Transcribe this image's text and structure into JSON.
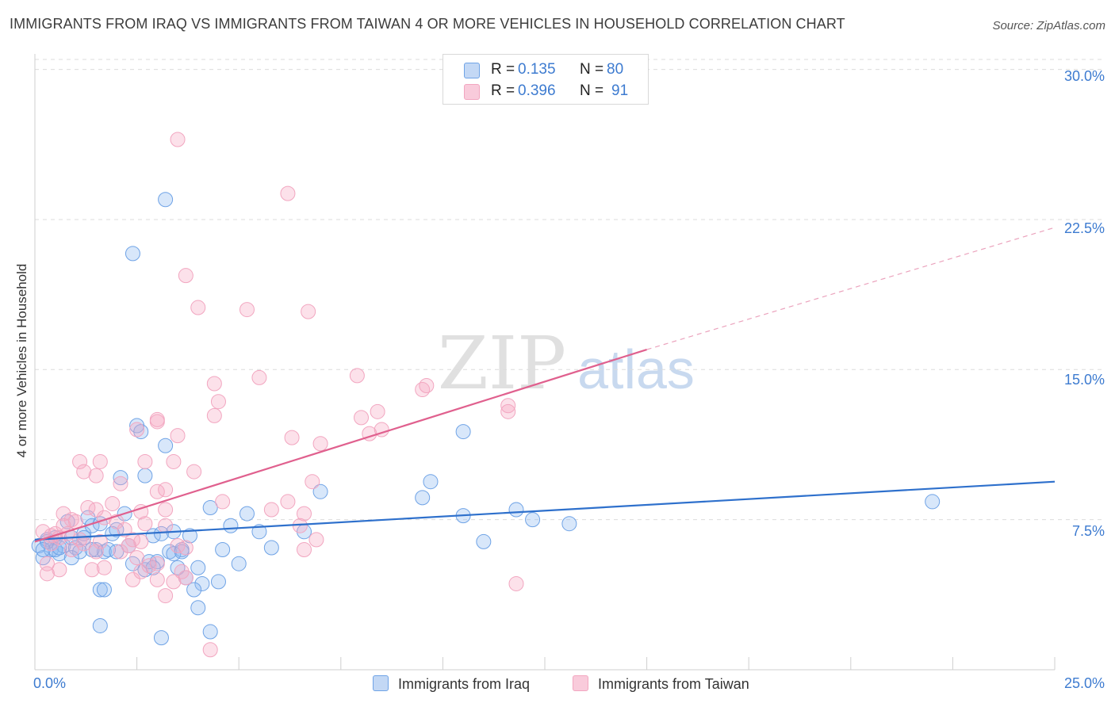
{
  "title": "IMMIGRANTS FROM IRAQ VS IMMIGRANTS FROM TAIWAN 4 OR MORE VEHICLES IN HOUSEHOLD CORRELATION CHART",
  "source": "Source: ZipAtlas.com",
  "watermark": {
    "zip": "ZIP",
    "atlas": "atlas"
  },
  "legend": {
    "r_label": "R =",
    "n_label": "N =",
    "iraq": {
      "r": "0.135",
      "n": "80"
    },
    "taiwan": {
      "r": "0.396",
      "n": "91"
    }
  },
  "colors": {
    "iraq": "#6fa3e6",
    "iraq_line": "#2e70cc",
    "taiwan": "#f2a6c0",
    "taiwan_line": "#e0608e",
    "axis_text": "#3d7bd0"
  },
  "chart_data": {
    "type": "scatter",
    "title": "IMMIGRANTS FROM IRAQ VS IMMIGRANTS FROM TAIWAN 4 OR MORE VEHICLES IN HOUSEHOLD CORRELATION CHART",
    "xlabel": "",
    "ylabel": "4 or more Vehicles in Household",
    "xlim": [
      0,
      25
    ],
    "ylim": [
      0,
      30.5
    ],
    "x_tick_labels": [
      "0.0%",
      "25.0%"
    ],
    "y_ticks": [
      7.5,
      15.0,
      22.5,
      30.0
    ],
    "y_tick_labels": [
      "7.5%",
      "15.0%",
      "22.5%",
      "30.0%"
    ],
    "grid": true,
    "legend_position": "top-center",
    "series": [
      {
        "name": "Immigrants from Iraq",
        "r": 0.135,
        "n": 80,
        "trend": {
          "x": [
            0,
            25
          ],
          "y": [
            6.5,
            9.4
          ]
        },
        "points": [
          [
            0.1,
            6.2
          ],
          [
            0.2,
            5.6
          ],
          [
            0.3,
            6.5
          ],
          [
            0.4,
            6.0
          ],
          [
            0.5,
            6.6
          ],
          [
            0.6,
            5.8
          ],
          [
            0.7,
            6.2
          ],
          [
            0.8,
            7.4
          ],
          [
            0.9,
            6.6
          ],
          [
            1.0,
            6.1
          ],
          [
            1.1,
            5.9
          ],
          [
            1.2,
            6.8
          ],
          [
            1.3,
            7.6
          ],
          [
            1.4,
            7.2
          ],
          [
            1.5,
            6.0
          ],
          [
            1.6,
            7.3
          ],
          [
            1.7,
            5.9
          ],
          [
            1.8,
            6.0
          ],
          [
            1.9,
            6.8
          ],
          [
            2.0,
            5.9
          ],
          [
            2.1,
            9.6
          ],
          [
            2.2,
            7.8
          ],
          [
            2.3,
            6.2
          ],
          [
            2.4,
            5.3
          ],
          [
            2.5,
            12.2
          ],
          [
            2.6,
            11.9
          ],
          [
            2.7,
            5.0
          ],
          [
            2.8,
            5.4
          ],
          [
            2.9,
            6.7
          ],
          [
            3.0,
            5.4
          ],
          [
            3.1,
            6.8
          ],
          [
            3.2,
            11.2
          ],
          [
            3.3,
            5.9
          ],
          [
            3.4,
            6.9
          ],
          [
            3.5,
            5.1
          ],
          [
            3.6,
            6.0
          ],
          [
            3.7,
            4.6
          ],
          [
            3.8,
            6.7
          ],
          [
            4.0,
            5.1
          ],
          [
            4.1,
            4.3
          ],
          [
            4.3,
            8.1
          ],
          [
            4.5,
            4.4
          ],
          [
            4.8,
            7.2
          ],
          [
            5.0,
            5.3
          ],
          [
            5.2,
            7.8
          ],
          [
            5.5,
            6.9
          ],
          [
            5.8,
            6.1
          ],
          [
            6.6,
            6.9
          ],
          [
            7.0,
            8.9
          ],
          [
            9.5,
            8.6
          ],
          [
            9.7,
            9.4
          ],
          [
            10.5,
            7.7
          ],
          [
            10.5,
            11.9
          ],
          [
            11.0,
            6.4
          ],
          [
            11.8,
            8.0
          ],
          [
            12.2,
            7.5
          ],
          [
            13.1,
            7.3
          ],
          [
            22.0,
            8.4
          ],
          [
            3.2,
            23.5
          ],
          [
            2.4,
            20.8
          ],
          [
            1.6,
            4.0
          ],
          [
            1.7,
            4.0
          ],
          [
            1.6,
            2.2
          ],
          [
            3.1,
            1.6
          ],
          [
            3.9,
            4.0
          ],
          [
            4.0,
            3.1
          ],
          [
            4.3,
            1.9
          ],
          [
            4.6,
            6.0
          ],
          [
            0.9,
            5.6
          ],
          [
            1.2,
            6.6
          ],
          [
            0.5,
            6.0
          ],
          [
            0.3,
            6.4
          ],
          [
            2.7,
            9.7
          ],
          [
            2.0,
            7.0
          ],
          [
            1.4,
            6.0
          ],
          [
            2.9,
            5.1
          ],
          [
            3.4,
            5.8
          ],
          [
            3.6,
            5.9
          ],
          [
            0.6,
            6.1
          ],
          [
            0.2,
            6.0
          ]
        ]
      },
      {
        "name": "Immigrants from Taiwan",
        "r": 0.396,
        "n": 91,
        "trend": {
          "x": [
            0,
            15
          ],
          "y": [
            6.4,
            16.0
          ]
        },
        "trend_extension": {
          "x": [
            15,
            25
          ],
          "y": [
            16.0,
            22.1
          ]
        },
        "points": [
          [
            3.5,
            26.5
          ],
          [
            6.2,
            23.8
          ],
          [
            3.7,
            19.7
          ],
          [
            4.0,
            18.1
          ],
          [
            5.2,
            18.0
          ],
          [
            6.7,
            17.9
          ],
          [
            5.5,
            14.6
          ],
          [
            7.9,
            14.7
          ],
          [
            9.5,
            14.0
          ],
          [
            9.6,
            14.2
          ],
          [
            11.6,
            13.2
          ],
          [
            11.6,
            12.9
          ],
          [
            4.4,
            14.3
          ],
          [
            4.5,
            13.4
          ],
          [
            4.4,
            12.7
          ],
          [
            8.0,
            12.6
          ],
          [
            8.4,
            12.9
          ],
          [
            8.2,
            11.8
          ],
          [
            8.5,
            12.0
          ],
          [
            3.0,
            12.4
          ],
          [
            3.0,
            12.5
          ],
          [
            3.5,
            11.7
          ],
          [
            2.5,
            12.0
          ],
          [
            6.3,
            11.6
          ],
          [
            7.0,
            11.3
          ],
          [
            1.1,
            10.4
          ],
          [
            1.6,
            10.4
          ],
          [
            2.7,
            10.4
          ],
          [
            3.4,
            10.4
          ],
          [
            3.9,
            9.9
          ],
          [
            1.2,
            9.9
          ],
          [
            1.5,
            9.7
          ],
          [
            2.1,
            9.3
          ],
          [
            3.0,
            8.9
          ],
          [
            3.2,
            9.0
          ],
          [
            4.6,
            8.4
          ],
          [
            6.2,
            8.4
          ],
          [
            6.8,
            9.4
          ],
          [
            1.3,
            8.1
          ],
          [
            1.5,
            8.0
          ],
          [
            1.9,
            8.3
          ],
          [
            2.6,
            7.9
          ],
          [
            3.2,
            8.0
          ],
          [
            5.8,
            8.0
          ],
          [
            6.6,
            7.8
          ],
          [
            0.7,
            7.8
          ],
          [
            0.9,
            7.5
          ],
          [
            1.0,
            7.4
          ],
          [
            1.7,
            7.6
          ],
          [
            2.0,
            7.4
          ],
          [
            2.2,
            7.0
          ],
          [
            2.7,
            7.3
          ],
          [
            3.2,
            7.2
          ],
          [
            6.5,
            7.2
          ],
          [
            0.2,
            6.9
          ],
          [
            0.5,
            6.8
          ],
          [
            0.7,
            7.2
          ],
          [
            0.8,
            6.8
          ],
          [
            1.1,
            6.5
          ],
          [
            1.6,
            6.4
          ],
          [
            2.4,
            6.5
          ],
          [
            2.6,
            6.4
          ],
          [
            3.5,
            6.2
          ],
          [
            3.7,
            6.1
          ],
          [
            6.9,
            6.5
          ],
          [
            6.6,
            6.0
          ],
          [
            0.4,
            6.3
          ],
          [
            0.6,
            6.6
          ],
          [
            0.9,
            6.0
          ],
          [
            1.2,
            6.3
          ],
          [
            1.5,
            5.9
          ],
          [
            2.1,
            5.9
          ],
          [
            2.3,
            6.2
          ],
          [
            2.5,
            5.6
          ],
          [
            3.0,
            5.3
          ],
          [
            0.3,
            5.3
          ],
          [
            0.6,
            5.0
          ],
          [
            1.4,
            5.0
          ],
          [
            1.7,
            5.1
          ],
          [
            2.4,
            4.5
          ],
          [
            2.6,
            4.9
          ],
          [
            2.8,
            5.2
          ],
          [
            3.0,
            4.5
          ],
          [
            3.4,
            4.4
          ],
          [
            3.6,
            4.9
          ],
          [
            3.7,
            4.6
          ],
          [
            3.2,
            3.7
          ],
          [
            4.3,
            1.0
          ],
          [
            11.8,
            4.3
          ],
          [
            0.3,
            4.8
          ],
          [
            0.4,
            6.7
          ]
        ]
      }
    ]
  },
  "bottom_legend": {
    "iraq": "Immigrants from Iraq",
    "taiwan": "Immigrants from Taiwan"
  }
}
